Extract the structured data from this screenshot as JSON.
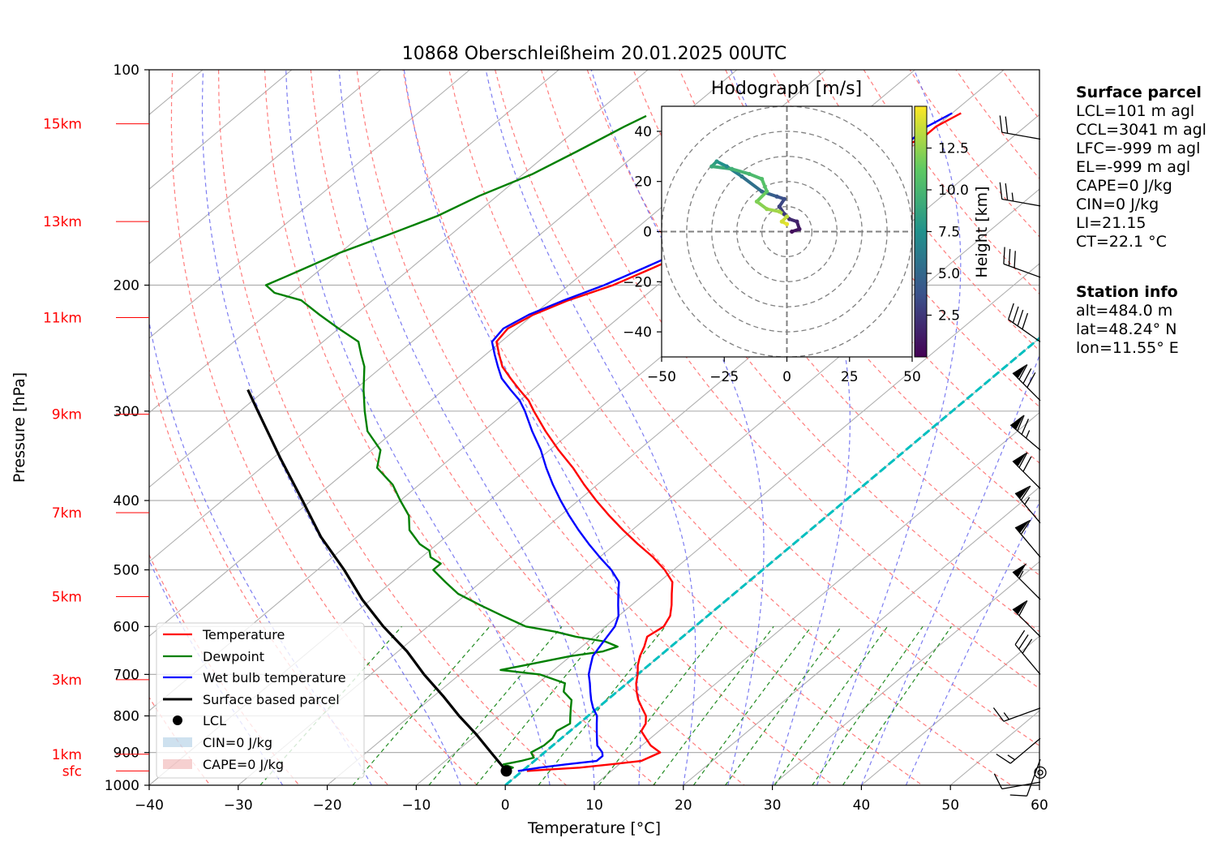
{
  "chart_data": {
    "type": "skewt",
    "title": "10868 Oberschleißheim 20.01.2025 00UTC",
    "xlabel": "Temperature [°C]",
    "ylabel": "Pressure [hPa]",
    "xlim": [
      -40,
      60
    ],
    "ylim": [
      1000,
      100
    ],
    "x_ticks": [
      "−40",
      "−30",
      "−20",
      "−10",
      "0",
      "10",
      "20",
      "30",
      "40",
      "50",
      "60"
    ],
    "pressure_ticks": [
      "100",
      "200",
      "300",
      "400",
      "500",
      "600",
      "700",
      "800",
      "900",
      "1000"
    ],
    "height_labels": [
      {
        "label": "sfc",
        "p": 955
      },
      {
        "label": "1km",
        "p": 905
      },
      {
        "label": "3km",
        "p": 712
      },
      {
        "label": "5km",
        "p": 545
      },
      {
        "label": "7km",
        "p": 416
      },
      {
        "label": "9km",
        "p": 303
      },
      {
        "label": "11km",
        "p": 222
      },
      {
        "label": "13km",
        "p": 163
      },
      {
        "label": "15km",
        "p": 119
      }
    ],
    "colors": {
      "temperature": "#ff0000",
      "dewpoint": "#008000",
      "wetbulb": "#0000ff",
      "parcel": "#000000",
      "isotherm_zero": "#00bfbf",
      "dry_adiabat": "#ff6666",
      "moist_adiabat": "#6666ee",
      "mixing_ratio": "#228b22",
      "height_labels": "#ff0000"
    },
    "series": [
      {
        "name": "Temperature",
        "points": [
          [
            955,
            0.5
          ],
          [
            950,
            3
          ],
          [
            945,
            6
          ],
          [
            935,
            9
          ],
          [
            925,
            12
          ],
          [
            900,
            13
          ],
          [
            880,
            11
          ],
          [
            860,
            9.5
          ],
          [
            840,
            8
          ],
          [
            820,
            7.5
          ],
          [
            800,
            6.5
          ],
          [
            780,
            5
          ],
          [
            760,
            3.5
          ],
          [
            740,
            2.2
          ],
          [
            720,
            1.0
          ],
          [
            700,
            0
          ],
          [
            680,
            -1.2
          ],
          [
            660,
            -2.2
          ],
          [
            640,
            -3
          ],
          [
            620,
            -4
          ],
          [
            600,
            -3.5
          ],
          [
            580,
            -4.2
          ],
          [
            560,
            -5.5
          ],
          [
            540,
            -7
          ],
          [
            520,
            -8.5
          ],
          [
            500,
            -11
          ],
          [
            480,
            -14
          ],
          [
            460,
            -17.5
          ],
          [
            440,
            -21
          ],
          [
            420,
            -24.5
          ],
          [
            400,
            -28
          ],
          [
            380,
            -31.5
          ],
          [
            360,
            -35
          ],
          [
            340,
            -39
          ],
          [
            320,
            -43
          ],
          [
            300,
            -47
          ],
          [
            290,
            -49
          ],
          [
            280,
            -51.5
          ],
          [
            270,
            -54
          ],
          [
            260,
            -56.5
          ],
          [
            250,
            -58.5
          ],
          [
            240,
            -60.5
          ],
          [
            230,
            -61
          ],
          [
            220,
            -60
          ],
          [
            210,
            -58
          ],
          [
            200,
            -55
          ],
          [
            190,
            -53
          ],
          [
            180,
            -51
          ],
          [
            170,
            -51
          ],
          [
            165,
            -49
          ],
          [
            160,
            -48
          ],
          [
            155,
            -46
          ],
          [
            150,
            -46
          ],
          [
            145,
            -45
          ],
          [
            140,
            -43
          ],
          [
            135,
            -43
          ],
          [
            130,
            -42
          ],
          [
            125,
            -40
          ],
          [
            120,
            -40
          ],
          [
            115,
            -39
          ]
        ]
      },
      {
        "name": "Dewpoint",
        "points": [
          [
            955,
            -2
          ],
          [
            945,
            -1.5
          ],
          [
            935,
            -3
          ],
          [
            925,
            -1.5
          ],
          [
            915,
            -0.5
          ],
          [
            900,
            -1.5
          ],
          [
            880,
            -1
          ],
          [
            860,
            -1
          ],
          [
            840,
            -1.5
          ],
          [
            820,
            -1
          ],
          [
            800,
            -2
          ],
          [
            780,
            -3
          ],
          [
            760,
            -4
          ],
          [
            740,
            -6
          ],
          [
            720,
            -7
          ],
          [
            700,
            -11
          ],
          [
            690,
            -16
          ],
          [
            680,
            -14
          ],
          [
            670,
            -12
          ],
          [
            660,
            -10
          ],
          [
            650,
            -7
          ],
          [
            640,
            -6
          ],
          [
            630,
            -8
          ],
          [
            620,
            -12
          ],
          [
            610,
            -15
          ],
          [
            600,
            -19
          ],
          [
            580,
            -23
          ],
          [
            560,
            -27
          ],
          [
            540,
            -31
          ],
          [
            520,
            -34
          ],
          [
            500,
            -37
          ],
          [
            490,
            -37
          ],
          [
            480,
            -39
          ],
          [
            470,
            -40
          ],
          [
            460,
            -42
          ],
          [
            440,
            -45
          ],
          [
            420,
            -47
          ],
          [
            400,
            -50
          ],
          [
            380,
            -53
          ],
          [
            360,
            -57
          ],
          [
            340,
            -59
          ],
          [
            320,
            -63
          ],
          [
            300,
            -66
          ],
          [
            280,
            -69
          ],
          [
            260,
            -72
          ],
          [
            250,
            -74
          ],
          [
            240,
            -76
          ],
          [
            230,
            -80
          ],
          [
            220,
            -84
          ],
          [
            210,
            -88
          ],
          [
            205,
            -92
          ],
          [
            200,
            -94
          ],
          [
            195,
            -93
          ],
          [
            190,
            -92
          ],
          [
            180,
            -90
          ],
          [
            170,
            -87
          ],
          [
            160,
            -84
          ],
          [
            150,
            -82
          ],
          [
            140,
            -79
          ],
          [
            130,
            -77
          ],
          [
            120,
            -75
          ],
          [
            116,
            -74
          ]
        ]
      },
      {
        "name": "Wet bulb temperature",
        "points": [
          [
            955,
            -0.5
          ],
          [
            945,
            1.5
          ],
          [
            935,
            4
          ],
          [
            925,
            7
          ],
          [
            910,
            7
          ],
          [
            900,
            6.5
          ],
          [
            880,
            5
          ],
          [
            860,
            4
          ],
          [
            840,
            3
          ],
          [
            820,
            2
          ],
          [
            800,
            1
          ],
          [
            780,
            -0.5
          ],
          [
            760,
            -1.8
          ],
          [
            740,
            -3
          ],
          [
            720,
            -4.2
          ],
          [
            700,
            -5.5
          ],
          [
            680,
            -6.5
          ],
          [
            660,
            -7.5
          ],
          [
            640,
            -8
          ],
          [
            620,
            -8.5
          ],
          [
            600,
            -9
          ],
          [
            580,
            -10
          ],
          [
            560,
            -11.5
          ],
          [
            540,
            -13
          ],
          [
            520,
            -14.5
          ],
          [
            500,
            -17
          ],
          [
            480,
            -20
          ],
          [
            460,
            -23
          ],
          [
            440,
            -26
          ],
          [
            420,
            -29
          ],
          [
            400,
            -32
          ],
          [
            380,
            -35
          ],
          [
            360,
            -38
          ],
          [
            340,
            -41
          ],
          [
            320,
            -44.5
          ],
          [
            300,
            -48
          ],
          [
            290,
            -50
          ],
          [
            280,
            -52.5
          ],
          [
            270,
            -55
          ],
          [
            260,
            -57
          ],
          [
            250,
            -59
          ],
          [
            240,
            -61
          ],
          [
            230,
            -61.5
          ],
          [
            220,
            -60.5
          ],
          [
            210,
            -58.5
          ],
          [
            200,
            -56
          ],
          [
            190,
            -54
          ],
          [
            180,
            -52
          ],
          [
            170,
            -52
          ],
          [
            165,
            -50
          ],
          [
            160,
            -49
          ],
          [
            155,
            -47
          ],
          [
            150,
            -47
          ],
          [
            145,
            -46
          ],
          [
            140,
            -44
          ],
          [
            135,
            -44
          ],
          [
            130,
            -43
          ],
          [
            125,
            -41
          ],
          [
            120,
            -41
          ],
          [
            115,
            -40
          ]
        ]
      },
      {
        "name": "Surface based parcel",
        "points": [
          [
            955,
            -1.8
          ],
          [
            900,
            -6
          ],
          [
            850,
            -10
          ],
          [
            800,
            -14.5
          ],
          [
            750,
            -19
          ],
          [
            700,
            -24
          ],
          [
            650,
            -29
          ],
          [
            600,
            -35
          ],
          [
            550,
            -41
          ],
          [
            500,
            -47
          ],
          [
            450,
            -54
          ],
          [
            400,
            -61
          ],
          [
            350,
            -69
          ],
          [
            300,
            -78
          ],
          [
            280,
            -82
          ]
        ]
      }
    ],
    "lcl": {
      "pressure": 955,
      "temperature": -1.8
    },
    "legend": {
      "position": "lower-left",
      "entries": [
        "Temperature",
        "Dewpoint",
        "Wet bulb temperature",
        "Surface based parcel",
        "LCL",
        "CIN=0 J/kg",
        "CAPE=0 J/kg"
      ]
    },
    "hodograph": {
      "title": "Hodograph [m/s]",
      "xlim": [
        -50,
        50
      ],
      "ylim": [
        -50,
        50
      ],
      "x_ticks": [
        "−50",
        "−25",
        "0",
        "25",
        "50"
      ],
      "y_ticks": [
        "40",
        "20",
        "0",
        "−20",
        "−40"
      ],
      "rings": [
        10,
        20,
        30,
        40,
        50
      ],
      "colorbar_label": "Height [km]",
      "colorbar_ticks": [
        "2.5",
        "5.0",
        "7.5",
        "10.0",
        "12.5"
      ],
      "colorbar_range": [
        0,
        15
      ],
      "points": [
        {
          "u": 2,
          "v": 0,
          "h": 0.5
        },
        {
          "u": 5,
          "v": 1,
          "h": 1
        },
        {
          "u": 4,
          "v": 4,
          "h": 1.5
        },
        {
          "u": 1,
          "v": 5,
          "h": 2
        },
        {
          "u": -1,
          "v": 7,
          "h": 2.5
        },
        {
          "u": -3,
          "v": 10,
          "h": 3
        },
        {
          "u": -1,
          "v": 13,
          "h": 3.5
        },
        {
          "u": -4,
          "v": 14,
          "h": 4
        },
        {
          "u": -10,
          "v": 16,
          "h": 5
        },
        {
          "u": -18,
          "v": 22,
          "h": 6
        },
        {
          "u": -24,
          "v": 26,
          "h": 7
        },
        {
          "u": -28,
          "v": 28,
          "h": 8
        },
        {
          "u": -30,
          "v": 26,
          "h": 9
        },
        {
          "u": -22,
          "v": 25,
          "h": 9.5
        },
        {
          "u": -15,
          "v": 23,
          "h": 10
        },
        {
          "u": -10,
          "v": 21,
          "h": 10.5
        },
        {
          "u": -8,
          "v": 16,
          "h": 11
        },
        {
          "u": -12,
          "v": 12,
          "h": 12
        },
        {
          "u": -8,
          "v": 9,
          "h": 12.5
        },
        {
          "u": -3,
          "v": 8,
          "h": 13
        },
        {
          "u": 0,
          "v": 6,
          "h": 13.5
        },
        {
          "u": -2,
          "v": 4,
          "h": 14
        },
        {
          "u": 0,
          "v": 3,
          "h": 14.5
        }
      ]
    },
    "wind_barbs": [
      {
        "p": 990,
        "direction": 260,
        "speed_kt": 10
      },
      {
        "p": 960,
        "direction": 0,
        "speed_kt": 0
      },
      {
        "p": 920,
        "direction": 200,
        "speed_kt": 10
      },
      {
        "p": 860,
        "direction": 230,
        "speed_kt": 15
      },
      {
        "p": 780,
        "direction": 250,
        "speed_kt": 15
      },
      {
        "p": 700,
        "direction": 320,
        "speed_kt": 30
      },
      {
        "p": 620,
        "direction": 315,
        "speed_kt": 60
      },
      {
        "p": 550,
        "direction": 315,
        "speed_kt": 55
      },
      {
        "p": 480,
        "direction": 320,
        "speed_kt": 60
      },
      {
        "p": 430,
        "direction": 320,
        "speed_kt": 65
      },
      {
        "p": 385,
        "direction": 315,
        "speed_kt": 70
      },
      {
        "p": 340,
        "direction": 310,
        "speed_kt": 75
      },
      {
        "p": 290,
        "direction": 315,
        "speed_kt": 80
      },
      {
        "p": 240,
        "direction": 305,
        "speed_kt": 40
      },
      {
        "p": 195,
        "direction": 290,
        "speed_kt": 30
      },
      {
        "p": 155,
        "direction": 280,
        "speed_kt": 25
      },
      {
        "p": 125,
        "direction": 280,
        "speed_kt": 20
      }
    ]
  },
  "surface_parcel": {
    "heading": "Surface parcel",
    "lines": [
      "LCL=101 m agl",
      "CCL=3041 m agl",
      "LFC=-999 m agl",
      "EL=-999 m agl",
      "CAPE=0 J/kg",
      "CIN=0 J/kg",
      "LI=21.15",
      "CT=22.1 °C"
    ]
  },
  "station_info": {
    "heading": "Station info",
    "lines": [
      "alt=484.0 m",
      "lat=48.24° N",
      "lon=11.55° E"
    ]
  }
}
